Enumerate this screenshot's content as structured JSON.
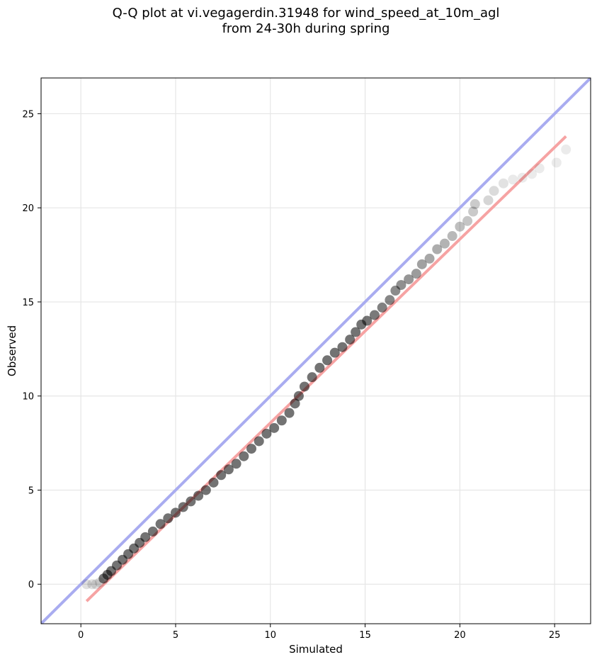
{
  "chart_data": {
    "type": "scatter",
    "title_lines": [
      "Q-Q plot at vi.vegagerdin.31948 for wind_speed_at_10m_agl",
      "from 24-30h during spring"
    ],
    "xlabel": "Simulated",
    "ylabel": "Observed",
    "xlim": [
      -2.1,
      26.9
    ],
    "ylim": [
      -2.1,
      26.9
    ],
    "xticks": [
      0,
      5,
      10,
      15,
      20,
      25
    ],
    "yticks": [
      0,
      5,
      10,
      15,
      20,
      25
    ],
    "grid": true,
    "identity_line": {
      "color": "#a9acf0",
      "points": [
        [
          -2.1,
          -2.1
        ],
        [
          26.9,
          26.9
        ]
      ]
    },
    "fit_line": {
      "color": "#f6a3a3",
      "points": [
        [
          0.3,
          -0.9
        ],
        [
          25.6,
          23.8
        ]
      ]
    },
    "marker_color": "#000000",
    "qq_points": [
      [
        0.3,
        0.0
      ],
      [
        0.6,
        0.0
      ],
      [
        0.8,
        0.0
      ],
      [
        1.0,
        0.1
      ],
      [
        1.2,
        0.3
      ],
      [
        1.4,
        0.5
      ],
      [
        1.6,
        0.7
      ],
      [
        1.9,
        1.0
      ],
      [
        2.2,
        1.3
      ],
      [
        2.5,
        1.6
      ],
      [
        2.8,
        1.9
      ],
      [
        3.1,
        2.2
      ],
      [
        3.4,
        2.5
      ],
      [
        3.8,
        2.8
      ],
      [
        4.2,
        3.2
      ],
      [
        4.6,
        3.5
      ],
      [
        5.0,
        3.8
      ],
      [
        5.4,
        4.1
      ],
      [
        5.8,
        4.4
      ],
      [
        6.2,
        4.7
      ],
      [
        6.6,
        5.0
      ],
      [
        7.0,
        5.4
      ],
      [
        7.4,
        5.8
      ],
      [
        7.8,
        6.1
      ],
      [
        8.2,
        6.4
      ],
      [
        8.6,
        6.8
      ],
      [
        9.0,
        7.2
      ],
      [
        9.4,
        7.6
      ],
      [
        9.8,
        8.0
      ],
      [
        10.2,
        8.3
      ],
      [
        10.6,
        8.7
      ],
      [
        11.0,
        9.1
      ],
      [
        11.3,
        9.6
      ],
      [
        11.5,
        10.0
      ],
      [
        11.8,
        10.5
      ],
      [
        12.2,
        11.0
      ],
      [
        12.6,
        11.5
      ],
      [
        13.0,
        11.9
      ],
      [
        13.4,
        12.3
      ],
      [
        13.8,
        12.6
      ],
      [
        14.2,
        13.0
      ],
      [
        14.5,
        13.4
      ],
      [
        14.8,
        13.8
      ],
      [
        15.1,
        14.0
      ],
      [
        15.5,
        14.3
      ],
      [
        15.9,
        14.7
      ],
      [
        16.3,
        15.1
      ],
      [
        16.6,
        15.6
      ],
      [
        16.9,
        15.9
      ],
      [
        17.3,
        16.2
      ],
      [
        17.7,
        16.5
      ],
      [
        18.0,
        17.0
      ],
      [
        18.4,
        17.3
      ],
      [
        18.8,
        17.8
      ],
      [
        19.2,
        18.1
      ],
      [
        19.6,
        18.5
      ],
      [
        20.0,
        19.0
      ],
      [
        20.4,
        19.3
      ],
      [
        20.7,
        19.8
      ],
      [
        20.8,
        20.2
      ],
      [
        21.5,
        20.4
      ],
      [
        21.8,
        20.9
      ],
      [
        22.3,
        21.3
      ],
      [
        22.8,
        21.5
      ],
      [
        23.3,
        21.6
      ],
      [
        23.8,
        21.8
      ],
      [
        24.2,
        22.1
      ],
      [
        25.1,
        22.4
      ],
      [
        25.6,
        23.1
      ]
    ]
  }
}
